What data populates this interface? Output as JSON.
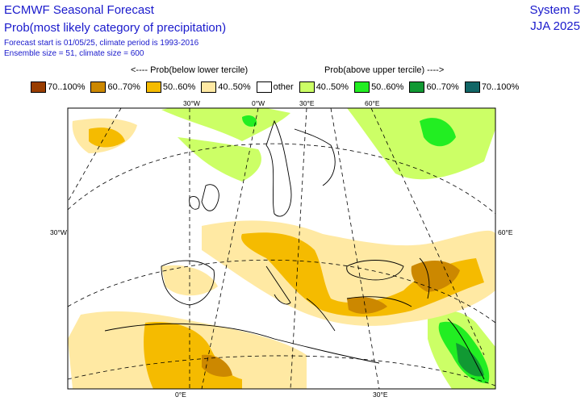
{
  "header": {
    "title": "ECMWF Seasonal Forecast",
    "subtitle": "Prob(most likely category of precipitation)",
    "forecast_line": "Forecast start is 01/05/25, climate period is 1993-2016",
    "ensemble_line": "Ensemble size = 51, climate size = 600",
    "system": "System 5",
    "season": "JJA 2025"
  },
  "subheaders": {
    "below": "<---- Prob(below lower tercile)",
    "above": "Prob(above upper tercile) ---->"
  },
  "legend": [
    {
      "label": "70..100%",
      "color": "#993d00"
    },
    {
      "label": "60..70%",
      "color": "#cc8800"
    },
    {
      "label": "50..60%",
      "color": "#f5bb00"
    },
    {
      "label": "40..50%",
      "color": "#ffe9a3"
    },
    {
      "label": "other",
      "color": "#ffffff"
    },
    {
      "label": "40..50%",
      "color": "#ccff66"
    },
    {
      "label": "50..60%",
      "color": "#22ee22"
    },
    {
      "label": "60..70%",
      "color": "#119933"
    },
    {
      "label": "70..100%",
      "color": "#116666"
    }
  ],
  "map_labels": {
    "top": [
      "30°W",
      "0°W",
      "30°E",
      "60°E"
    ],
    "left": "30°W",
    "right": "60°E",
    "bottom": [
      "0°E",
      "30°E"
    ]
  }
}
